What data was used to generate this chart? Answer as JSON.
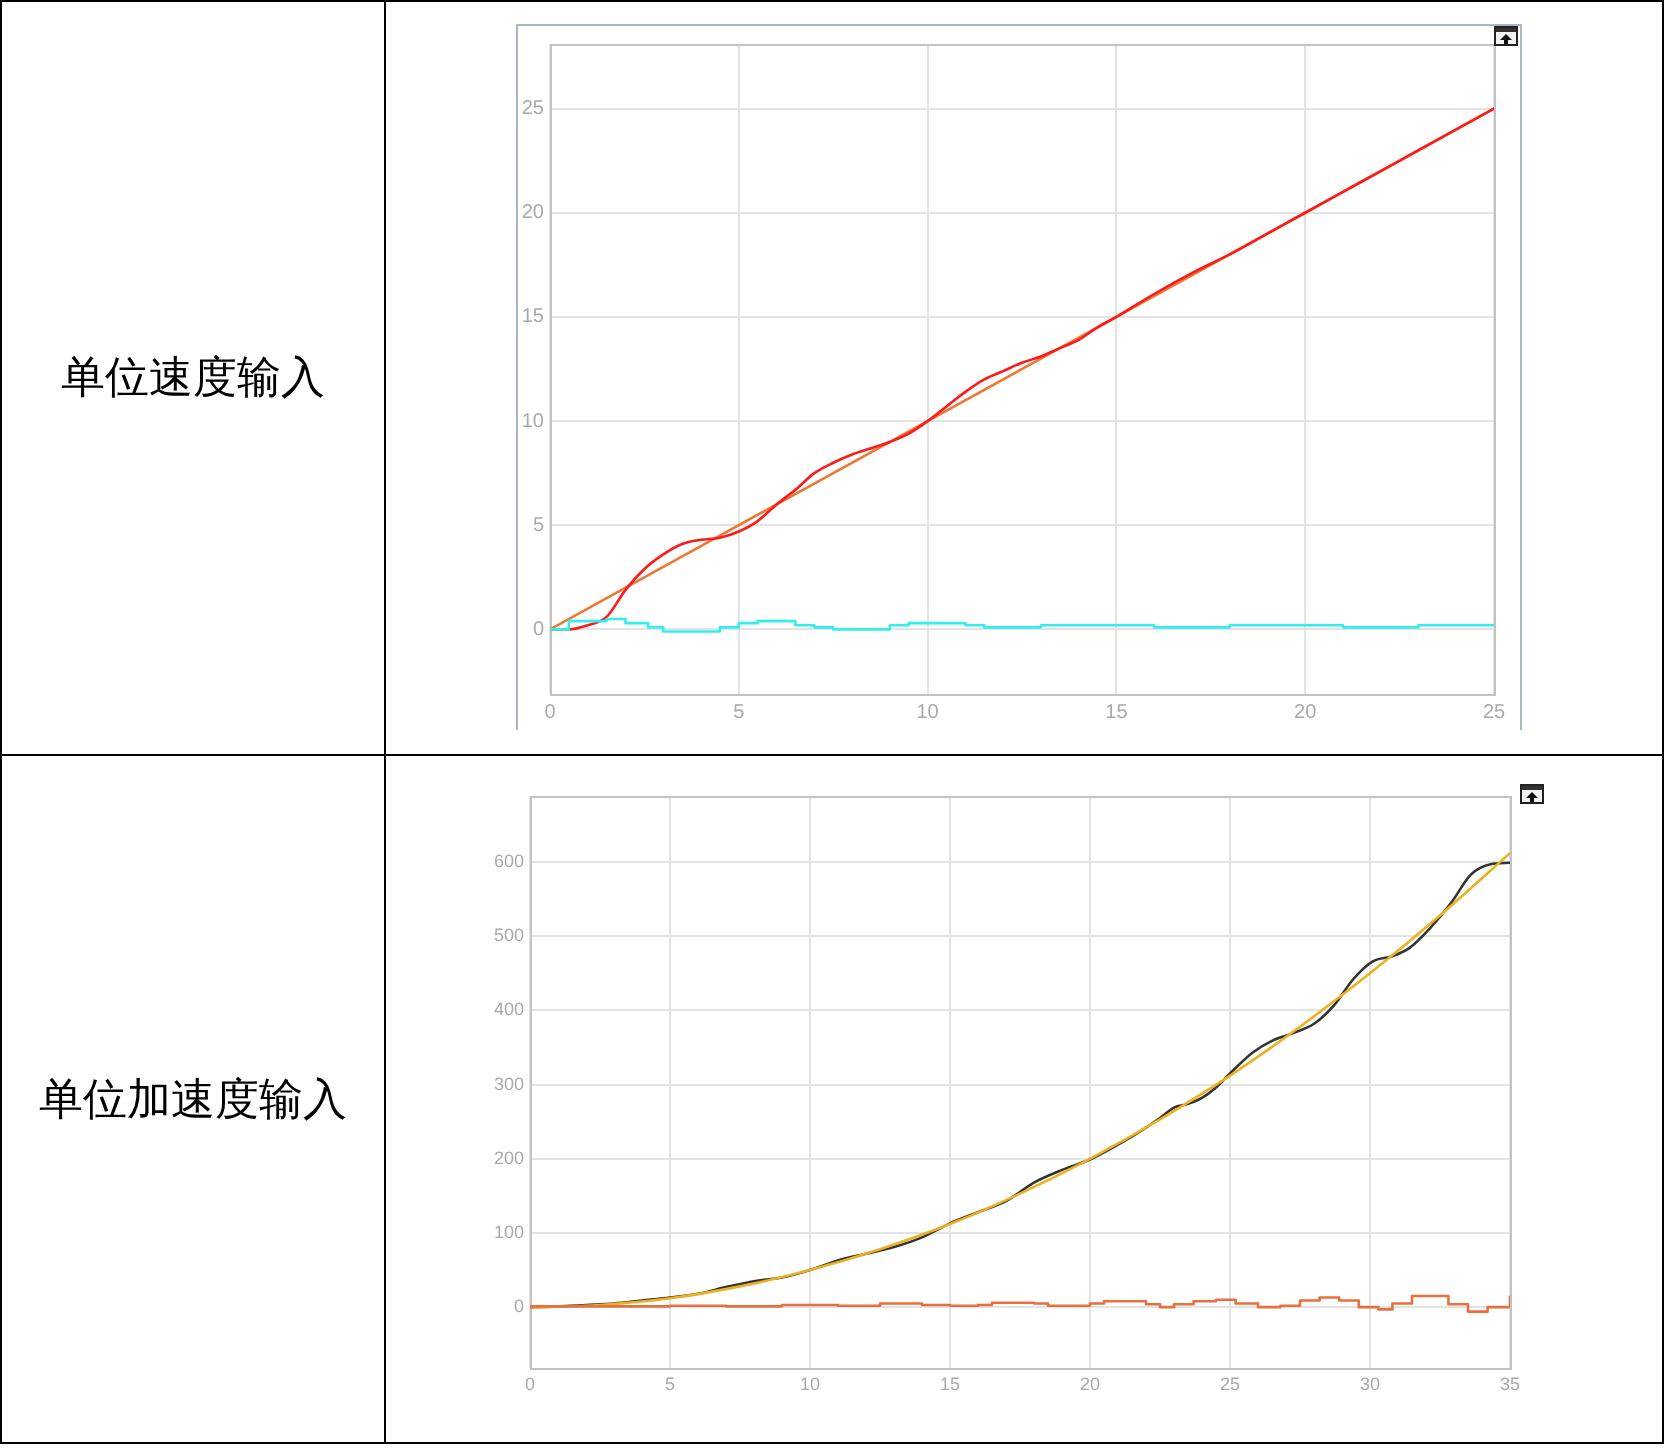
{
  "chart_data": [
    {
      "type": "line",
      "title": "单位速度输入",
      "xlim": [
        0,
        25
      ],
      "xticks": [
        0,
        5,
        10,
        15,
        20,
        25
      ],
      "ylim": [
        -3.1,
        28.1
      ],
      "yticks": [
        0,
        5,
        10,
        15,
        20,
        25
      ],
      "grid": true,
      "marker": "none",
      "series": [
        {
          "color": "#ee7733",
          "x": [
            0,
            25
          ],
          "values": [
            0,
            25
          ]
        },
        {
          "color": "#ff1a1a",
          "x": [
            0,
            0.5,
            1,
            1.5,
            2,
            2.5,
            3,
            3.5,
            4,
            4.5,
            5,
            5.5,
            6,
            6.5,
            7,
            7.5,
            8,
            8.5,
            9,
            9.5,
            10,
            10.5,
            11,
            11.5,
            12,
            12.5,
            13,
            13.5,
            14,
            14.5,
            15,
            16,
            17,
            18,
            19,
            20,
            21,
            22,
            23,
            24,
            25
          ],
          "values": [
            0,
            0,
            0.2,
            0.6,
            1.9,
            2.9,
            3.6,
            4.1,
            4.3,
            4.4,
            4.7,
            5.2,
            6.0,
            6.7,
            7.5,
            8.0,
            8.4,
            8.7,
            9.0,
            9.4,
            10.0,
            10.7,
            11.4,
            12.0,
            12.4,
            12.8,
            13.1,
            13.5,
            13.9,
            14.5,
            15.0,
            16.1,
            17.1,
            18.0,
            19.0,
            20.0,
            21.0,
            22.0,
            23.0,
            24.0,
            25.0
          ]
        },
        {
          "type": "step",
          "color": "#33eeee",
          "x": [
            0,
            0.5,
            1.5,
            2,
            2.6,
            3,
            4.5,
            5,
            5.5,
            6.5,
            7,
            7.5,
            9,
            9.5,
            11,
            11.5,
            13,
            16,
            18,
            21,
            23,
            25
          ],
          "values": [
            0,
            0.4,
            0.5,
            0.3,
            0.1,
            -0.1,
            0.1,
            0.3,
            0.4,
            0.2,
            0.1,
            0,
            0.2,
            0.3,
            0.2,
            0.1,
            0.2,
            0.1,
            0.2,
            0.1,
            0.2,
            0.2
          ]
        }
      ]
    },
    {
      "type": "line",
      "title": "单位加速度输入",
      "xlim": [
        0,
        35
      ],
      "xticks": [
        0,
        5,
        10,
        15,
        20,
        25,
        30,
        35
      ],
      "ylim": [
        -82,
        689
      ],
      "yticks": [
        0,
        100,
        200,
        300,
        400,
        500,
        600
      ],
      "grid": true,
      "marker": "none",
      "series": [
        {
          "color": "#333333",
          "x": [
            0,
            1,
            2,
            3,
            4,
            5,
            6,
            7,
            8,
            9,
            10,
            11,
            12,
            13,
            14,
            15,
            16,
            17,
            18,
            19,
            20,
            21,
            22,
            22.5,
            23,
            23.5,
            24,
            24.5,
            25,
            25.8,
            26.5,
            27.3,
            28,
            28.7,
            29.4,
            30.1,
            30.8,
            31.4,
            32.1,
            32.9,
            33.6,
            34.3,
            35
          ],
          "values": [
            0,
            1,
            3,
            5,
            9,
            13,
            18,
            27,
            35,
            40,
            50,
            63,
            72,
            81,
            94,
            113,
            128,
            143,
            168,
            185,
            199,
            219,
            242,
            255,
            269,
            274,
            282,
            296,
            315,
            343,
            359,
            370,
            382,
            406,
            442,
            466,
            473,
            484,
            509,
            545,
            583,
            597,
            599
          ]
        },
        {
          "color": "#edb120",
          "x": [
            0,
            2.5,
            5,
            7.5,
            10,
            12.5,
            15,
            17.5,
            20,
            22.5,
            25,
            27.5,
            30,
            32.5,
            35
          ],
          "values": [
            0,
            3,
            12,
            28,
            50,
            78,
            112,
            153,
            200,
            253,
            312,
            378,
            450,
            528,
            612
          ]
        },
        {
          "type": "step",
          "color": "#e8703f",
          "x": [
            0,
            5,
            7,
            9,
            11,
            12.5,
            14,
            15,
            16,
            16.5,
            18,
            18.5,
            20,
            20.5,
            22,
            22.5,
            23,
            23.7,
            24.5,
            25.2,
            26,
            26.8,
            27.5,
            28.2,
            28.9,
            29.6,
            30.3,
            30.8,
            31.5,
            32.8,
            33.5,
            34.2,
            35
          ],
          "values": [
            1,
            2,
            1,
            3,
            2,
            5,
            3,
            2,
            3,
            6,
            5,
            2,
            5,
            8,
            4,
            0,
            4,
            8,
            10,
            5,
            0,
            2,
            9,
            13,
            9,
            0,
            -3,
            5,
            15,
            4,
            -6,
            0,
            14
          ]
        }
      ]
    }
  ]
}
